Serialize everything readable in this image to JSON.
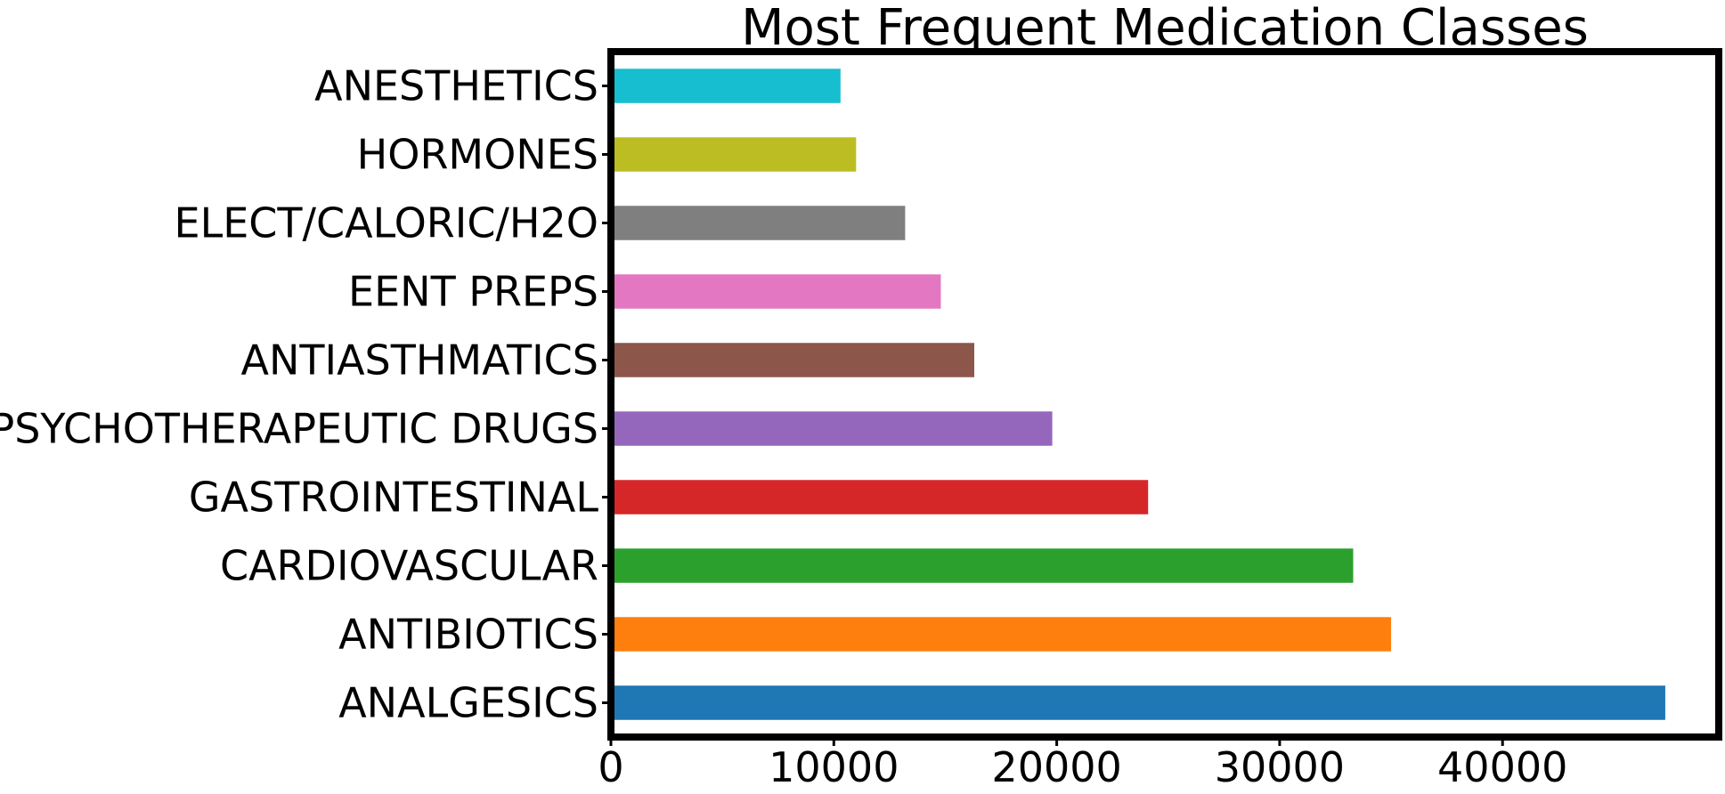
{
  "chart_data": {
    "type": "bar",
    "orientation": "horizontal",
    "title": "Most Frequent Medication Classes",
    "xlabel": "",
    "ylabel": "",
    "categories": [
      "ANALGESICS",
      "ANTIBIOTICS",
      "CARDIOVASCULAR",
      "GASTROINTESTINAL",
      "PSYCHOTHERAPEUTIC DRUGS",
      "ANTIASTHMATICS",
      "EENT PREPS",
      "ELECT/CALORIC/H2O",
      "HORMONES",
      "ANESTHETICS"
    ],
    "values": [
      47300,
      35000,
      33300,
      24100,
      19800,
      16300,
      14800,
      13200,
      11000,
      10300
    ],
    "colors": [
      "#1f77b4",
      "#ff7f0e",
      "#2ca02c",
      "#d62728",
      "#9467bd",
      "#8c564b",
      "#e377c2",
      "#7f7f7f",
      "#bcbd22",
      "#17becf"
    ],
    "xlim": [
      0,
      49700
    ],
    "xticks": [
      0,
      10000,
      20000,
      30000,
      40000
    ],
    "xtick_labels": [
      "0",
      "10000",
      "20000",
      "30000",
      "40000"
    ],
    "grid": false,
    "legend": "none"
  }
}
